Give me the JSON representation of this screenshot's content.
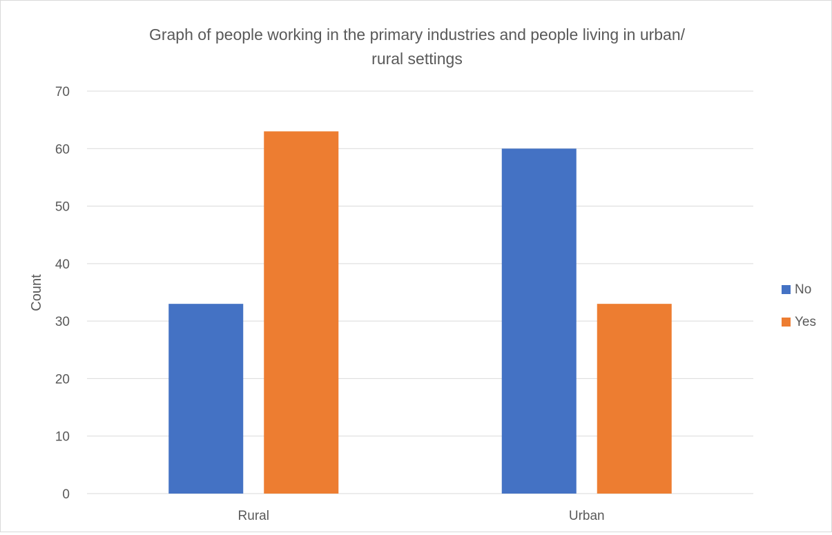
{
  "chart_data": {
    "type": "bar",
    "title_lines": [
      "Graph of people working in the primary industries and people living in urban/",
      "rural settings"
    ],
    "categories": [
      "Rural",
      "Urban"
    ],
    "series": [
      {
        "name": "No",
        "values": [
          33,
          60
        ],
        "color": "#4472C4"
      },
      {
        "name": "Yes",
        "values": [
          63,
          33
        ],
        "color": "#ED7D31"
      }
    ],
    "xlabel": "",
    "ylabel": "Count",
    "ylim": [
      0,
      70
    ],
    "yticks": [
      0,
      10,
      20,
      30,
      40,
      50,
      60,
      70
    ],
    "grid": true,
    "legend_position": "right",
    "gridline_color": "#d9d9d9",
    "text_color": "#595959"
  }
}
